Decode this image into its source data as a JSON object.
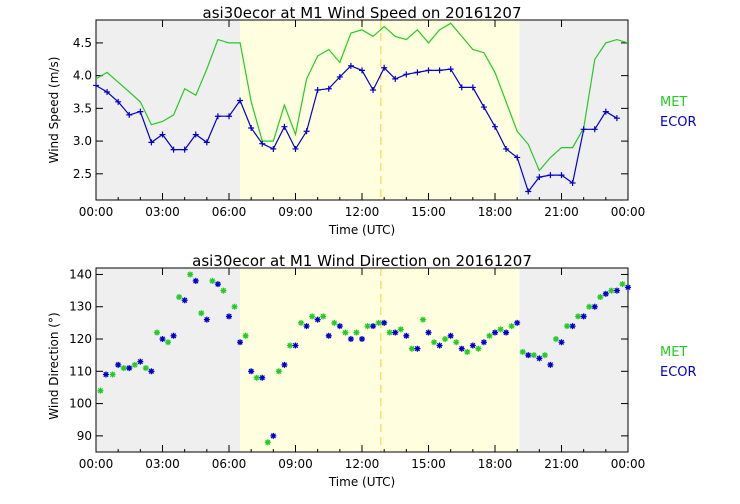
{
  "chart_data": [
    {
      "type": "line",
      "title": "asi30ecor at M1 Wind Speed on 20161207",
      "xlabel": "Time (UTC)",
      "ylabel": "Wind Speed (m/s)",
      "xlim": [
        0,
        24
      ],
      "ylim": [
        2.1,
        4.85
      ],
      "x_ticks": [
        0,
        3,
        6,
        9,
        12,
        15,
        18,
        21,
        24
      ],
      "x_tick_labels": [
        "00:00",
        "03:00",
        "06:00",
        "09:00",
        "12:00",
        "15:00",
        "18:00",
        "21:00",
        "00:00"
      ],
      "y_ticks": [
        2.5,
        3.0,
        3.5,
        4.0,
        4.5
      ],
      "y_tick_labels": [
        "2.5",
        "3.0",
        "3.5",
        "4.0",
        "4.5"
      ],
      "shading": {
        "night_color": "#efefef",
        "day_color": "#ffffe0",
        "day_start": 6.5,
        "day_end": 19.1,
        "noon_line": 12.85,
        "noon_color": "#ffd24a"
      },
      "legend": [
        {
          "name": "MET",
          "color": "#22cc22"
        },
        {
          "name": "ECOR",
          "color": "#0000cc"
        }
      ],
      "series": [
        {
          "name": "MET",
          "color": "#22cc22",
          "marker": "none",
          "x": [
            0,
            0.5,
            1,
            1.5,
            2,
            2.5,
            3,
            3.5,
            4,
            4.5,
            5,
            5.5,
            6,
            6.5,
            7,
            7.5,
            8,
            8.5,
            9,
            9.5,
            10,
            10.5,
            11,
            11.5,
            12,
            12.5,
            13,
            13.5,
            14,
            14.5,
            15,
            15.5,
            16,
            16.5,
            17,
            17.5,
            18,
            18.5,
            19,
            19.5,
            20,
            20.5,
            21,
            21.5,
            22,
            22.5,
            23,
            23.5,
            24
          ],
          "y": [
            3.95,
            4.05,
            3.9,
            3.75,
            3.6,
            3.25,
            3.3,
            3.4,
            3.8,
            3.7,
            4.1,
            4.55,
            4.5,
            4.5,
            3.6,
            3.0,
            3.0,
            3.55,
            3.1,
            3.95,
            4.3,
            4.4,
            4.2,
            4.65,
            4.7,
            4.6,
            4.75,
            4.6,
            4.55,
            4.7,
            4.5,
            4.7,
            4.8,
            4.6,
            4.4,
            4.35,
            4.05,
            3.6,
            3.15,
            2.95,
            2.55,
            2.75,
            2.9,
            2.9,
            3.2,
            4.25,
            4.5,
            4.55,
            4.5
          ]
        },
        {
          "name": "ECOR",
          "color": "#0000cc",
          "marker": "plus",
          "x": [
            0,
            0.5,
            1,
            1.5,
            2,
            2.5,
            3,
            3.5,
            4,
            4.5,
            5,
            5.5,
            6,
            6.5,
            7,
            7.5,
            8,
            8.5,
            9,
            9.5,
            10,
            10.5,
            11,
            11.5,
            12,
            12.5,
            13,
            13.5,
            14,
            14.5,
            15,
            15.5,
            16,
            16.5,
            17,
            17.5,
            18,
            18.5,
            19,
            19.5,
            20,
            20.5,
            21,
            21.5,
            22,
            22.5,
            23,
            23.5
          ],
          "y": [
            3.85,
            3.75,
            3.6,
            3.4,
            3.45,
            2.98,
            3.1,
            2.87,
            2.87,
            3.1,
            2.98,
            3.38,
            3.38,
            3.62,
            3.2,
            2.96,
            2.88,
            3.22,
            2.88,
            3.15,
            3.78,
            3.8,
            3.98,
            4.15,
            4.08,
            3.78,
            4.12,
            3.95,
            4.02,
            4.05,
            4.08,
            4.08,
            4.1,
            3.82,
            3.82,
            3.52,
            3.22,
            2.88,
            2.75,
            2.23,
            2.45,
            2.48,
            2.48,
            2.36,
            3.18,
            3.18,
            3.45,
            3.35
          ]
        }
      ]
    },
    {
      "type": "scatter",
      "title": "asi30ecor at M1 Wind Direction on 20161207",
      "xlabel": "Time (UTC)",
      "ylabel": "Wind Direction (°)",
      "xlim": [
        0,
        24
      ],
      "ylim": [
        85,
        142
      ],
      "x_ticks": [
        0,
        3,
        6,
        9,
        12,
        15,
        18,
        21,
        24
      ],
      "x_tick_labels": [
        "00:00",
        "03:00",
        "06:00",
        "09:00",
        "12:00",
        "15:00",
        "18:00",
        "21:00",
        "00:00"
      ],
      "y_ticks": [
        90,
        100,
        110,
        120,
        130,
        140
      ],
      "y_tick_labels": [
        "90",
        "100",
        "110",
        "120",
        "130",
        "140"
      ],
      "shading": {
        "night_color": "#efefef",
        "day_color": "#ffffe0",
        "day_start": 6.5,
        "day_end": 19.1,
        "noon_line": 12.85,
        "noon_color": "#ffd24a"
      },
      "legend": [
        {
          "name": "MET",
          "color": "#22cc22"
        },
        {
          "name": "ECOR",
          "color": "#0000cc"
        }
      ],
      "series": [
        {
          "name": "MET",
          "color": "#22cc22",
          "marker": "asterisk",
          "x": [
            0.2,
            0.75,
            1.25,
            1.75,
            2.25,
            2.75,
            3.25,
            3.75,
            4.25,
            4.75,
            5.25,
            5.75,
            6.25,
            6.75,
            7.25,
            7.75,
            8.25,
            8.75,
            9.25,
            9.75,
            10.25,
            10.75,
            11.25,
            11.75,
            12.25,
            12.75,
            13.25,
            13.75,
            14.25,
            14.75,
            15.25,
            15.75,
            16.25,
            16.75,
            17.25,
            17.75,
            18.25,
            18.75,
            19.25,
            19.75,
            20.25,
            20.75,
            21.25,
            21.75,
            22.25,
            22.75,
            23.25,
            23.75
          ],
          "y": [
            104,
            109,
            111,
            112,
            111,
            122,
            119,
            133,
            140,
            128,
            138,
            135,
            130,
            121,
            108,
            88,
            110,
            118,
            125,
            127,
            127,
            125,
            122,
            122,
            124,
            125,
            122,
            123,
            117,
            126,
            119,
            120,
            119,
            116,
            117,
            121,
            123,
            124,
            116,
            115,
            115,
            120,
            124,
            127,
            130,
            133,
            135,
            137
          ]
        },
        {
          "name": "ECOR",
          "color": "#0000cc",
          "marker": "asterisk",
          "x": [
            0.45,
            1.0,
            1.5,
            2.0,
            2.5,
            3.0,
            3.5,
            4.0,
            4.5,
            5.0,
            5.5,
            6.0,
            6.5,
            7.0,
            7.5,
            8.0,
            8.5,
            9.0,
            9.5,
            10.0,
            10.5,
            11.0,
            11.5,
            12.0,
            12.5,
            13.0,
            13.5,
            14.0,
            14.5,
            15.0,
            15.5,
            16.0,
            16.5,
            17.0,
            17.5,
            18.0,
            18.5,
            19.0,
            19.5,
            20.0,
            20.5,
            21.0,
            21.5,
            22.0,
            22.5,
            23.0,
            23.5,
            24.0
          ],
          "y": [
            109,
            112,
            111,
            113,
            110,
            120,
            121,
            132,
            138,
            126,
            137,
            127,
            119,
            110,
            108,
            90,
            112,
            118,
            124,
            126,
            121,
            124,
            120,
            120,
            124,
            125,
            122,
            121,
            117,
            122,
            118,
            121,
            117,
            118,
            119,
            122,
            122,
            125,
            115,
            114,
            112,
            119,
            124,
            127,
            130,
            134,
            135,
            136
          ]
        }
      ]
    }
  ]
}
